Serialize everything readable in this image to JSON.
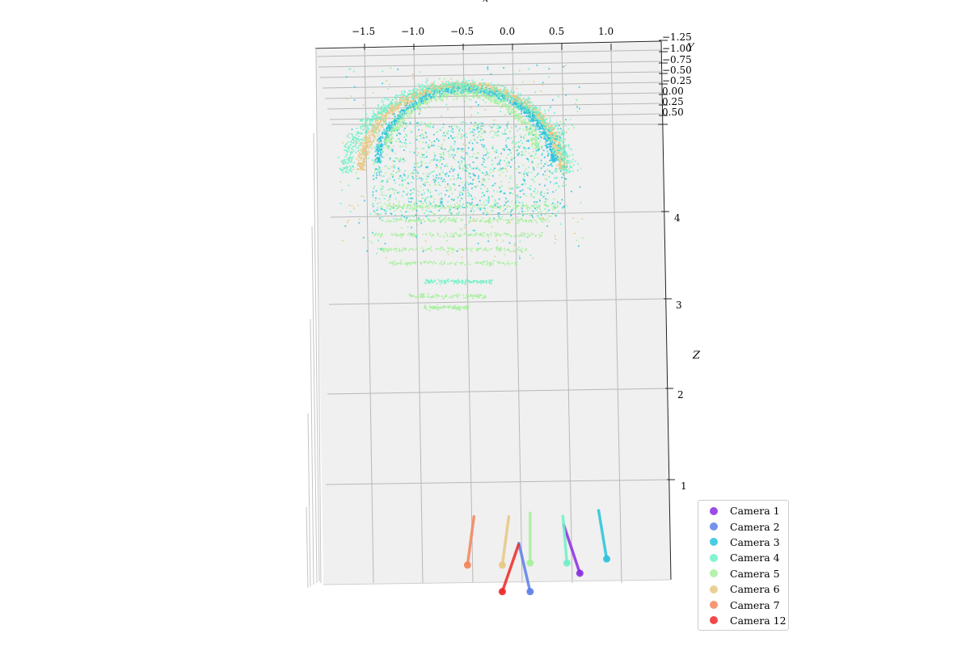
{
  "chart_data": {
    "type": "scatter",
    "subtype": "3d-point-cloud-with-camera-poses",
    "xlabel": "x",
    "ylabel": "Y",
    "zlabel": "Z",
    "x_ticks": [
      "−1.5",
      "−1.0",
      "−0.5",
      "0.0",
      "0.5",
      "1.0"
    ],
    "y_ticks": [
      "−1.25",
      "−1.00",
      "−0.75",
      "−0.50",
      "−0.25",
      "0.00",
      "0.25",
      "0.50"
    ],
    "z_ticks": [
      "1",
      "2",
      "3",
      "4"
    ],
    "xlim": [
      -1.9,
      1.6
    ],
    "ylim": [
      -1.25,
      0.5
    ],
    "zlim": [
      0,
      5
    ],
    "grid": true,
    "legend_position": "bottom-right",
    "cameras": [
      {
        "name": "Camera 1",
        "color": "#8a2be2",
        "x": 0.58,
        "z": 0.2
      },
      {
        "name": "Camera 2",
        "color": "#5b7fe8",
        "x": 0.08,
        "z": -0.25
      },
      {
        "name": "Camera 3",
        "color": "#29c3dc",
        "x": 0.85,
        "z": 0.55
      },
      {
        "name": "Camera 4",
        "color": "#6ff0c8",
        "x": 0.45,
        "z": 0.45
      },
      {
        "name": "Camera 5",
        "color": "#a6f09c",
        "x": 0.08,
        "z": 0.45
      },
      {
        "name": "Camera 6",
        "color": "#e8c882",
        "x": -0.2,
        "z": 0.4
      },
      {
        "name": "Camera 7",
        "color": "#f4845a",
        "x": -0.55,
        "z": 0.4
      },
      {
        "name": "Camera 12",
        "color": "#f02828",
        "x": -0.2,
        "z": -0.25
      }
    ],
    "point_cloud": {
      "description_colors": [
        "#29c3dc",
        "#6ff0c8",
        "#a6f09c",
        "#e8c882"
      ]
    }
  },
  "legend": {
    "items": [
      {
        "label": "Camera 1",
        "color": "#8a2be2"
      },
      {
        "label": "Camera 2",
        "color": "#5b7fe8"
      },
      {
        "label": "Camera 3",
        "color": "#29c3dc"
      },
      {
        "label": "Camera 4",
        "color": "#6ff0c8"
      },
      {
        "label": "Camera 5",
        "color": "#a6f09c"
      },
      {
        "label": "Camera 6",
        "color": "#e8c882"
      },
      {
        "label": "Camera 7",
        "color": "#f4845a"
      },
      {
        "label": "Camera 12",
        "color": "#f02828"
      }
    ]
  }
}
